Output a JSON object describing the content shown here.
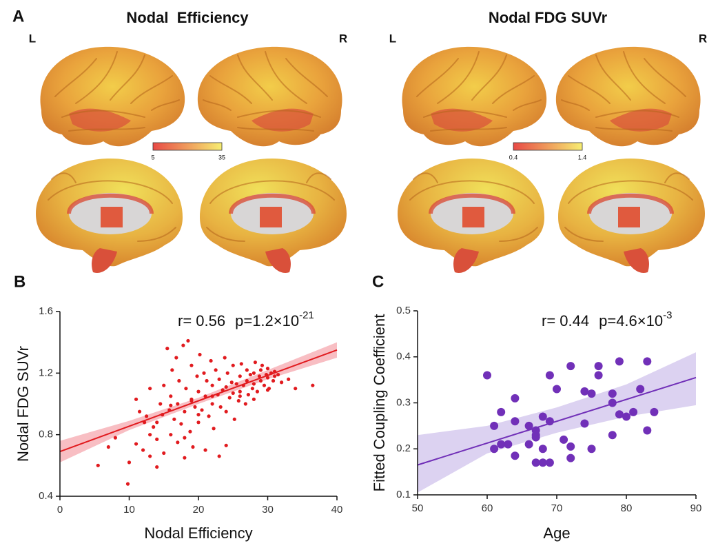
{
  "panel_labels": [
    "A",
    "B",
    "C"
  ],
  "brain_maps": [
    {
      "title": "Nodal  Efficiency",
      "hemisphere_labels": [
        "L",
        "R"
      ],
      "colorbar": {
        "ticks": [
          5,
          35
        ],
        "colors": [
          "#e84a46",
          "#f7ee72"
        ]
      }
    },
    {
      "title": "Nodal FDG SUVr",
      "hemisphere_labels": [
        "L",
        "R"
      ],
      "colorbar": {
        "ticks": [
          0.4,
          1.4
        ],
        "colors": [
          "#e84a46",
          "#f7ee72"
        ]
      }
    }
  ],
  "chart_data": [
    {
      "type": "scatter",
      "xlabel": "Nodal Efficiency",
      "ylabel": "Nodal FDG SUVr",
      "annotation": {
        "r": "r= 0.56",
        "p": "p=1.2×10",
        "p_exponent": "-21"
      },
      "color": "#e11b1f",
      "band_color": "#f5a3aa",
      "xlim": [
        0,
        40
      ],
      "xticks": [
        0,
        10,
        20,
        30,
        40
      ],
      "ylim": [
        0.4,
        1.6
      ],
      "yticks": [
        0.4,
        0.8,
        1.2,
        1.6
      ],
      "x": [
        5.5,
        7,
        8,
        9.8,
        11,
        11.5,
        12,
        12.2,
        12.5,
        13,
        13,
        13.5,
        14,
        14,
        14.5,
        14.8,
        15,
        15,
        15.5,
        15.8,
        16,
        16,
        16.2,
        16.5,
        16.8,
        17,
        17,
        17.2,
        17.5,
        17.8,
        18,
        18,
        18.2,
        18.5,
        18.8,
        19,
        19,
        19.2,
        19.5,
        19.8,
        20,
        20,
        20.2,
        20.5,
        20.8,
        21,
        21,
        21.2,
        21.5,
        21.8,
        22,
        22,
        22.2,
        22.5,
        22.8,
        23,
        23,
        23.2,
        23.5,
        23.8,
        24,
        24,
        24.2,
        24.5,
        24.8,
        25,
        25,
        25.2,
        25.5,
        25.8,
        26,
        26,
        26.2,
        26.5,
        26.8,
        27,
        27,
        27.2,
        27.5,
        27.8,
        28,
        28,
        28.2,
        28.5,
        28.8,
        29,
        29,
        29.2,
        29.5,
        29.8,
        30,
        30,
        30.2,
        30.5,
        30.8,
        31,
        31,
        31.5,
        32,
        33,
        34,
        36.5,
        10,
        11,
        13,
        16,
        18,
        20,
        22,
        24,
        26,
        28,
        30,
        14,
        19
      ],
      "values": [
        0.6,
        0.72,
        0.78,
        0.48,
        1.03,
        0.95,
        0.7,
        0.88,
        0.92,
        0.66,
        1.1,
        0.85,
        0.77,
        0.59,
        1.0,
        0.93,
        0.68,
        1.12,
        1.36,
        0.96,
        1.05,
        0.8,
        1.22,
        0.9,
        1.3,
        0.75,
        1.0,
        1.15,
        0.87,
        1.38,
        0.95,
        0.65,
        1.1,
        1.41,
        0.82,
        1.02,
        1.25,
        0.72,
        0.98,
        1.18,
        1.08,
        0.88,
        1.32,
        0.96,
        1.2,
        1.05,
        0.7,
        1.15,
        0.92,
        1.28,
        1.0,
        1.12,
        0.84,
        1.22,
        1.06,
        0.66,
        1.16,
        0.98,
        1.09,
        1.3,
        1.11,
        0.95,
        1.2,
        1.04,
        1.14,
        1.07,
        1.25,
        0.9,
        1.13,
        1.02,
        1.18,
        1.08,
        1.26,
        1.12,
        1.0,
        1.15,
        1.22,
        1.06,
        1.19,
        1.1,
        1.2,
        1.13,
        1.27,
        1.08,
        1.18,
        1.22,
        1.15,
        1.25,
        1.12,
        1.19,
        1.17,
        1.23,
        1.1,
        1.2,
        1.15,
        1.21,
        1.18,
        1.19,
        1.14,
        1.16,
        1.1,
        1.12,
        0.62,
        0.74,
        0.8,
        0.99,
        0.78,
        0.93,
        1.05,
        0.73,
        1.05,
        1.03,
        1.09,
        0.88,
        1.03
      ],
      "fit": {
        "x": [
          0,
          40
        ],
        "y": [
          0.69,
          1.35
        ]
      },
      "band": {
        "x": [
          0,
          10,
          20,
          30,
          40
        ],
        "lower": [
          0.62,
          0.83,
          1.0,
          1.16,
          1.3
        ],
        "upper": [
          0.76,
          0.89,
          1.04,
          1.22,
          1.4
        ]
      }
    },
    {
      "type": "scatter",
      "xlabel": "Age",
      "ylabel": "Fitted Coupling Coefficient",
      "annotation": {
        "r": "r= 0.44",
        "p": "p=4.6×10",
        "p_exponent": "-3"
      },
      "color": "#7130b8",
      "band_color": "#cdbfeb",
      "xlim": [
        50,
        90
      ],
      "xticks": [
        50,
        60,
        70,
        80,
        90
      ],
      "ylim": [
        0.1,
        0.5
      ],
      "yticks": [
        0.1,
        0.2,
        0.3,
        0.4,
        0.5
      ],
      "x": [
        60,
        61,
        61,
        62,
        62,
        63,
        64,
        64,
        64,
        66,
        66,
        67,
        67,
        67,
        67,
        68,
        68,
        68,
        69,
        69,
        69,
        70,
        71,
        72,
        72,
        72,
        74,
        74,
        75,
        75,
        76,
        76,
        78,
        78,
        78,
        79,
        79,
        80,
        81,
        82,
        83,
        83,
        84
      ],
      "values": [
        0.36,
        0.25,
        0.2,
        0.28,
        0.21,
        0.21,
        0.31,
        0.26,
        0.185,
        0.25,
        0.21,
        0.24,
        0.23,
        0.17,
        0.225,
        0.27,
        0.2,
        0.17,
        0.36,
        0.26,
        0.17,
        0.33,
        0.22,
        0.38,
        0.205,
        0.18,
        0.325,
        0.255,
        0.32,
        0.2,
        0.38,
        0.36,
        0.32,
        0.3,
        0.23,
        0.39,
        0.275,
        0.27,
        0.28,
        0.33,
        0.39,
        0.24,
        0.28
      ],
      "fit": {
        "x": [
          50,
          90
        ],
        "y": [
          0.165,
          0.355
        ]
      },
      "band": {
        "x": [
          50,
          60,
          70,
          80,
          90
        ],
        "lower": [
          0.105,
          0.19,
          0.235,
          0.27,
          0.295
        ],
        "upper": [
          0.23,
          0.25,
          0.29,
          0.34,
          0.41
        ]
      }
    }
  ]
}
